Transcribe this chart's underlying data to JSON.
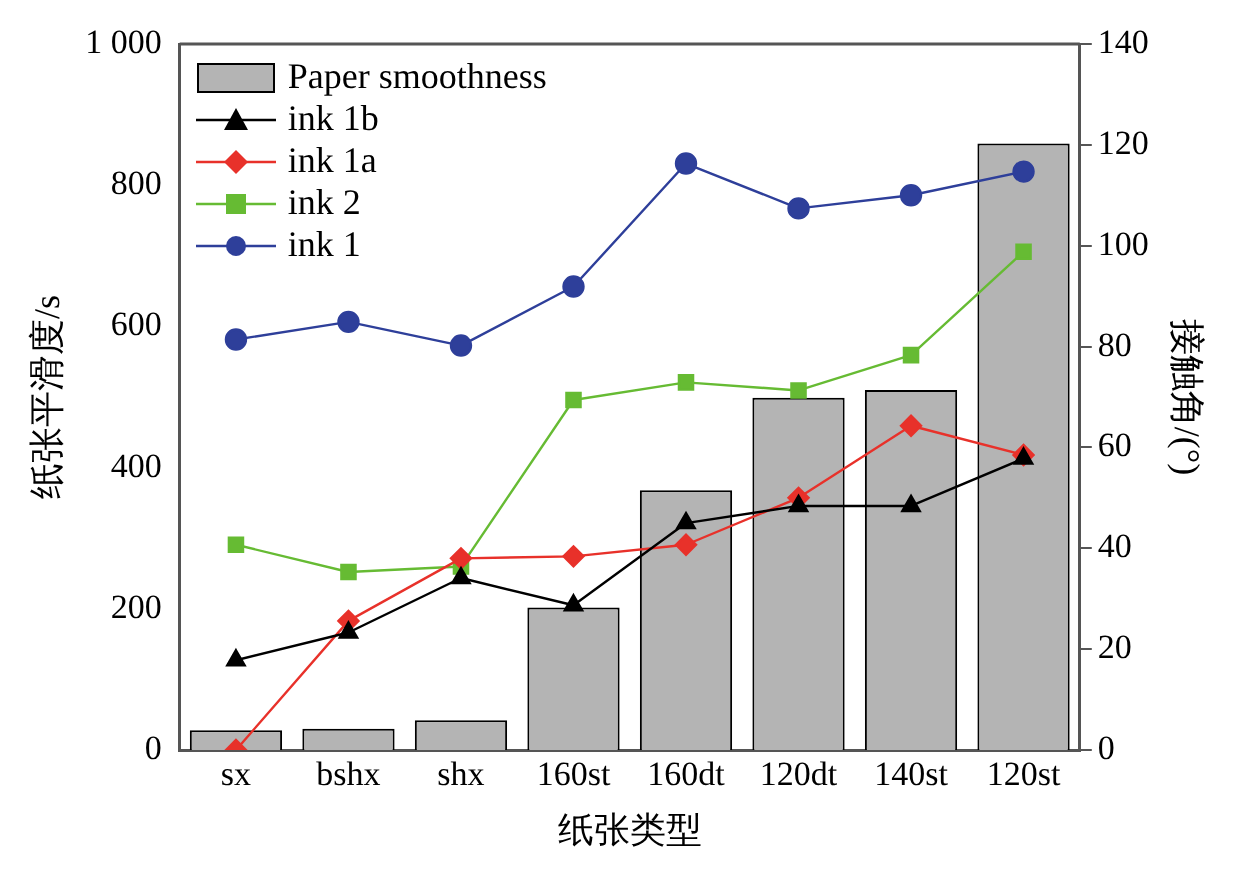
{
  "chart_data": {
    "type": "bar",
    "xlabel": "纸张类型",
    "ylabel": "纸张平滑度/s",
    "y2label": "接触角/(°)",
    "categories": [
      "sx",
      "bshx",
      "shx",
      "160st",
      "160dt",
      "120dt",
      "140st",
      "120st"
    ],
    "series": [
      {
        "name": "Paper smoothness",
        "color": "#b4b4b4",
        "values": [
          28,
          30,
          42,
          202,
          368,
          499,
          510,
          859
        ]
      },
      {
        "name": "ink 1b",
        "type": "line",
        "axis": "y2",
        "color": "#000000",
        "marker": "triangle",
        "values": [
          17.8,
          23.3,
          34.1,
          28.7,
          45,
          48.4,
          48.4,
          57.8
        ]
      },
      {
        "name": "ink 1a",
        "type": "line",
        "axis": "y2",
        "color": "#e8312a",
        "marker": "diamond",
        "values": [
          0,
          25.6,
          38,
          38.4,
          40.7,
          50,
          64.3,
          58.5
        ]
      },
      {
        "name": "ink 2",
        "type": "line",
        "axis": "y2",
        "color": "#66bb33",
        "marker": "square",
        "values": [
          40.7,
          35.3,
          36.4,
          69.4,
          72.9,
          71.3,
          78.3,
          98.8
        ]
      },
      {
        "name": "ink 1",
        "type": "line",
        "axis": "y2",
        "color": "#2e3f9a",
        "marker": "circle",
        "values": [
          81.4,
          84.9,
          80.2,
          91.9,
          116.3,
          107.4,
          110,
          114.7
        ]
      }
    ],
    "ylim": [
      0,
      1000
    ],
    "yticks": [
      0,
      200,
      400,
      600,
      800,
      {
        "value": 1000,
        "label": "1 000"
      }
    ],
    "y2lim": [
      0,
      140
    ],
    "y2ticks": [
      0,
      20,
      40,
      60,
      80,
      100,
      120,
      140
    ],
    "grid": false,
    "legend": "top left"
  }
}
